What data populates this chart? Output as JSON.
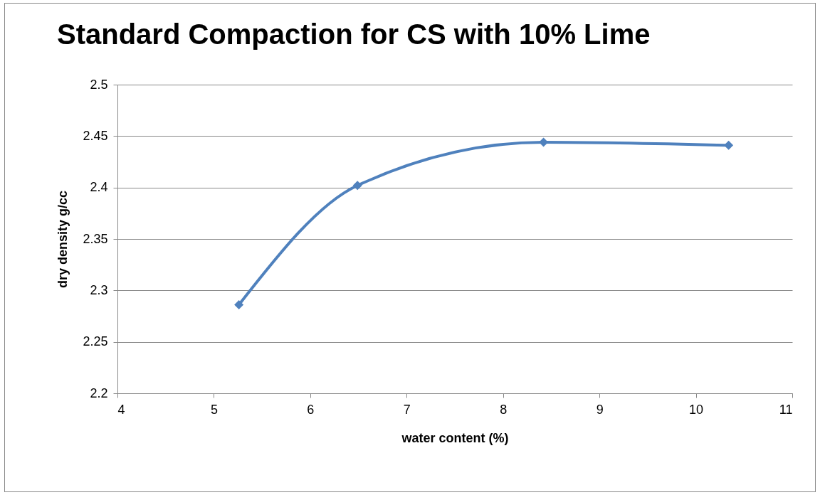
{
  "chart_data": {
    "type": "line",
    "title": "Standard Compaction for CS with 10% Lime",
    "xlabel": "water content (%)",
    "ylabel": "dry density  g/cc",
    "x": [
      5.26,
      6.49,
      8.42,
      10.34
    ],
    "series": [
      {
        "color": "#4f81bd",
        "values": [
          2.286,
          2.402,
          2.444,
          2.441
        ]
      }
    ],
    "xlim": [
      4,
      11
    ],
    "xticks": [
      4,
      5,
      6,
      7,
      8,
      9,
      10,
      11
    ],
    "ylim": [
      2.2,
      2.5
    ],
    "yticks": [
      2.2,
      2.25,
      2.3,
      2.35,
      2.4,
      2.45,
      2.5
    ],
    "grid": "y",
    "marker": "diamond",
    "line_style": "solid",
    "legend": false
  }
}
